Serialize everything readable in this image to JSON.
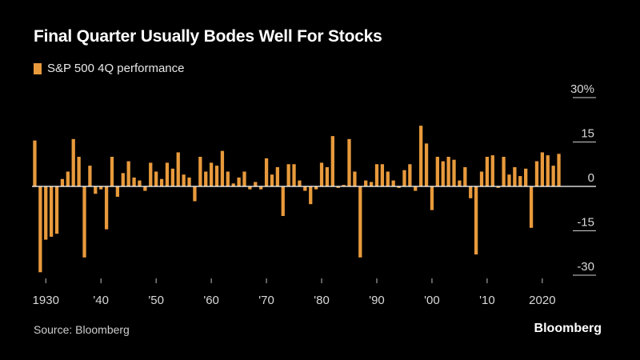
{
  "title": "Final Quarter Usually Bodes Well For Stocks",
  "legend_label": "S&P 500 4Q performance",
  "source": "Source: Bloomberg",
  "brand": "Bloomberg",
  "colors": {
    "bar": "#e89a3c",
    "background": "#000000",
    "axis": "#ffffff"
  },
  "chart_data": {
    "type": "bar",
    "title": "Final Quarter Usually Bodes Well For Stocks",
    "xlabel": "",
    "ylabel": "",
    "ylim": [
      -30,
      30
    ],
    "y_ticks": [
      {
        "value": 30,
        "label": "30%"
      },
      {
        "value": 15,
        "label": "15"
      },
      {
        "value": 0,
        "label": "0"
      },
      {
        "value": -15,
        "label": "-15"
      },
      {
        "value": -30,
        "label": "-30"
      }
    ],
    "x_ticks": [
      {
        "year": 1930,
        "label": "1930"
      },
      {
        "year": 1940,
        "label": "'40"
      },
      {
        "year": 1950,
        "label": "'50"
      },
      {
        "year": 1960,
        "label": "'60"
      },
      {
        "year": 1970,
        "label": "'70"
      },
      {
        "year": 1980,
        "label": "'80"
      },
      {
        "year": 1990,
        "label": "'90"
      },
      {
        "year": 2000,
        "label": "'00"
      },
      {
        "year": 2010,
        "label": "'10"
      },
      {
        "year": 2020,
        "label": "2020"
      }
    ],
    "series": [
      {
        "name": "S&P 500 4Q performance",
        "start_year": 1928,
        "values": [
          15.5,
          -29,
          -18,
          -17,
          -16,
          2.5,
          5,
          16,
          10,
          -24,
          7,
          -2.5,
          -1,
          -14.5,
          10,
          -3.5,
          4.5,
          8.5,
          3,
          2,
          -1.5,
          8,
          5,
          2.5,
          8,
          6,
          11.5,
          4,
          3,
          -5,
          10,
          5,
          8,
          7,
          12,
          5,
          1,
          3,
          5,
          -1,
          1.5,
          -1,
          9.5,
          4,
          6.5,
          -10,
          7.5,
          7.5,
          2,
          -1.5,
          -6,
          -1,
          8,
          6.5,
          17,
          -0.5,
          0.5,
          16,
          5,
          -24,
          2,
          1.5,
          7.5,
          7.5,
          5,
          2,
          -0.5,
          5.5,
          7.5,
          -1.5,
          20.5,
          14.5,
          -8,
          10,
          8.5,
          10,
          9,
          2,
          6.5,
          -4,
          -23,
          5,
          10,
          10.5,
          -0.5,
          10,
          4,
          6.5,
          3.5,
          6,
          -14,
          8.5,
          11.5,
          10.5,
          7,
          11
        ]
      }
    ]
  }
}
